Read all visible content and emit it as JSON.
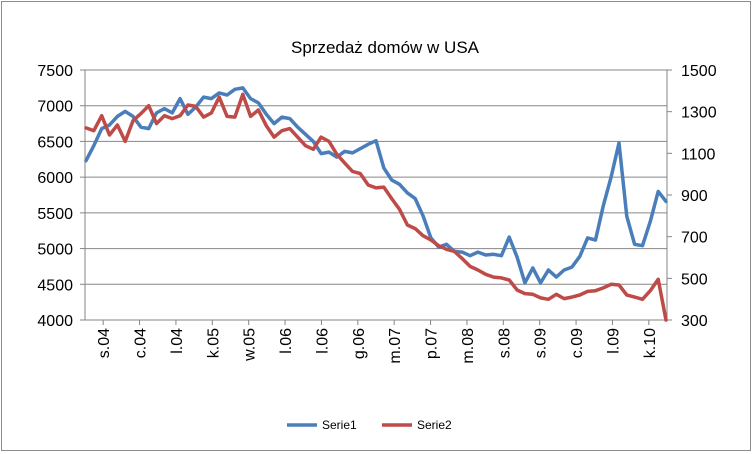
{
  "chart_data": {
    "type": "line",
    "title": "Sprzedaż domów w USA",
    "xlabel": "",
    "ylabel": "",
    "y_left_lim": [
      4000,
      7500
    ],
    "y_left_ticks": [
      "4000",
      "4500",
      "5000",
      "5500",
      "6000",
      "6500",
      "7000",
      "7500"
    ],
    "y_right_lim": [
      300,
      1500
    ],
    "y_right_ticks": [
      "300",
      "500",
      "700",
      "900",
      "1100",
      "1300",
      "1500"
    ],
    "x_tick_labels": [
      "s.04",
      "c.04",
      "l.04",
      "k.05",
      "w.05",
      "l.06",
      "l.06",
      "g.06",
      "m.07",
      "p.07",
      "m.08",
      "s.08",
      "s.09",
      "c.09",
      "l.09",
      "k.10"
    ],
    "gridlines": true,
    "legend_position": "bottom",
    "colors": {
      "Serie1": "#4a7ebb",
      "Serie2": "#be4b48",
      "grid": "#868686"
    },
    "series": [
      {
        "name": "Serie1",
        "axis": "left",
        "values": [
          6230,
          6440,
          6680,
          6730,
          6850,
          6920,
          6850,
          6700,
          6680,
          6900,
          6960,
          6900,
          7100,
          6880,
          6980,
          7120,
          7100,
          7180,
          7150,
          7230,
          7250,
          7100,
          7040,
          6880,
          6750,
          6840,
          6820,
          6700,
          6600,
          6500,
          6330,
          6350,
          6280,
          6360,
          6340,
          6400,
          6460,
          6510,
          6130,
          5960,
          5900,
          5780,
          5700,
          5460,
          5150,
          5020,
          5060,
          4960,
          4950,
          4900,
          4950,
          4910,
          4920,
          4900,
          5160,
          4880,
          4520,
          4730,
          4520,
          4700,
          4600,
          4700,
          4740,
          4890,
          5150,
          5120,
          5600,
          6000,
          6480,
          5450,
          5060,
          5040,
          5380,
          5800,
          5660
        ]
      },
      {
        "name": "Serie2",
        "axis": "left",
        "values": [
          6690,
          6650,
          6860,
          6590,
          6730,
          6500,
          6790,
          6890,
          7000,
          6750,
          6860,
          6820,
          6860,
          7010,
          6990,
          6840,
          6900,
          7120,
          6850,
          6840,
          7160,
          6850,
          6940,
          6720,
          6560,
          6650,
          6680,
          6560,
          6440,
          6390,
          6560,
          6500,
          6320,
          6200,
          6080,
          6050,
          5890,
          5850,
          5860,
          5700,
          5550,
          5330,
          5280,
          5180,
          5120,
          5040,
          4990,
          4960,
          4860,
          4750,
          4700,
          4640,
          4600,
          4590,
          4560,
          4420,
          4370,
          4360,
          4310,
          4290,
          4360,
          4300,
          4320,
          4350,
          4400,
          4410,
          4450,
          4500,
          4490,
          4350,
          4320,
          4290,
          4410,
          4570,
          4000
        ]
      }
    ]
  }
}
